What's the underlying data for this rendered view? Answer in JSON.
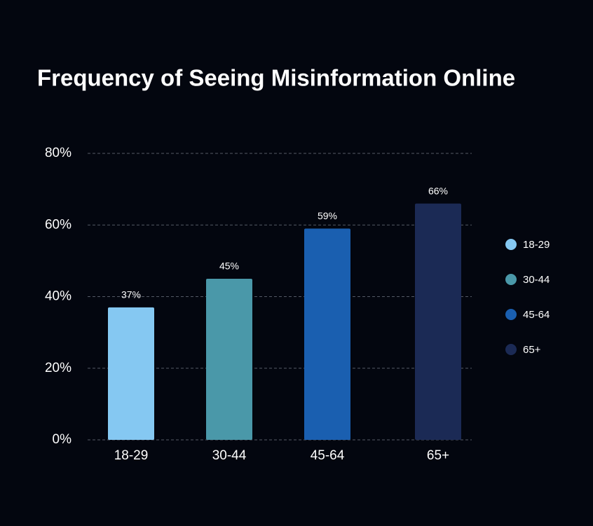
{
  "chart_data": {
    "type": "bar",
    "title": "Frequency of Seeing Misinformation Online",
    "categories": [
      "18-29",
      "30-44",
      "45-64",
      "65+"
    ],
    "values": [
      37,
      45,
      59,
      66
    ],
    "value_labels": [
      "37%",
      "45%",
      "59%",
      "66%"
    ],
    "colors": [
      "#85c8f2",
      "#4a98a9",
      "#1a5fb0",
      "#1b2a55"
    ],
    "ylim": [
      0,
      80
    ],
    "yticks": [
      {
        "value": 0,
        "label": "0%"
      },
      {
        "value": 20,
        "label": "20%"
      },
      {
        "value": 40,
        "label": "40%"
      },
      {
        "value": 60,
        "label": "60%"
      },
      {
        "value": 80,
        "label": "80%"
      }
    ],
    "grid": true,
    "legend": "right"
  }
}
